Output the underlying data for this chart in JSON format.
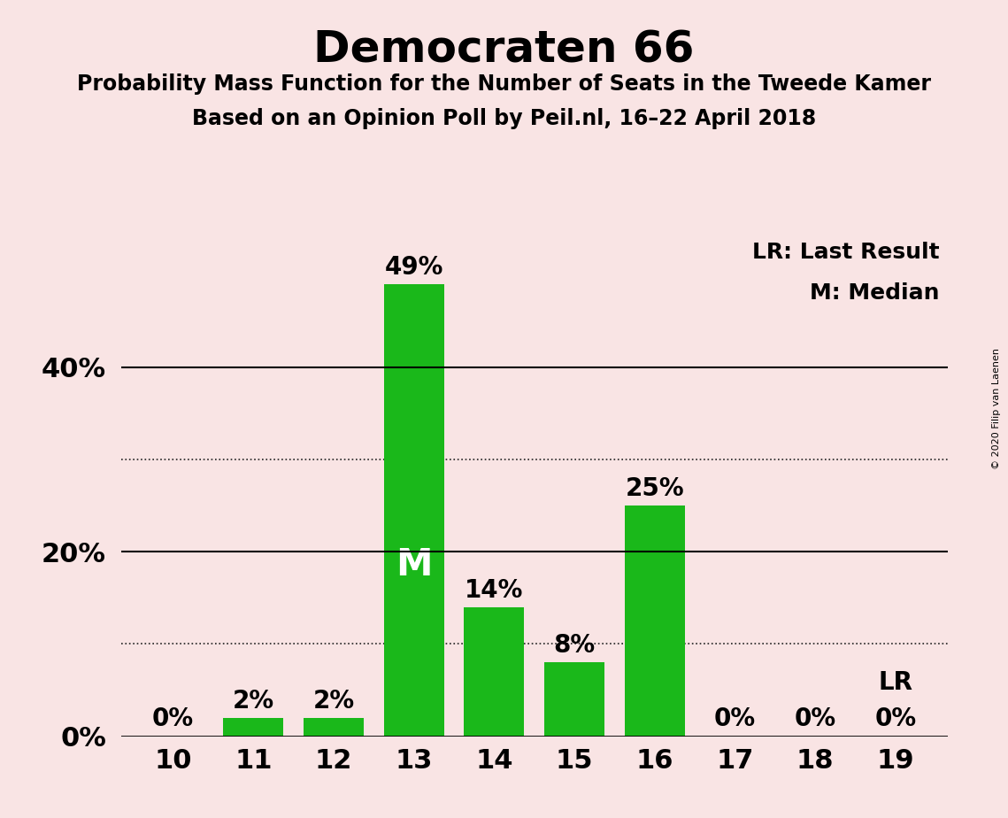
{
  "title": "Democraten 66",
  "subtitle1": "Probability Mass Function for the Number of Seats in the Tweede Kamer",
  "subtitle2": "Based on an Opinion Poll by Peil.nl, 16–22 April 2018",
  "seats": [
    10,
    11,
    12,
    13,
    14,
    15,
    16,
    17,
    18,
    19
  ],
  "probabilities": [
    0,
    2,
    2,
    49,
    14,
    8,
    25,
    0,
    0,
    0
  ],
  "bar_color": "#1ab81a",
  "median_seat": 13,
  "lr_seat": 19,
  "median_label": "M",
  "lr_label": "LR",
  "legend_lr": "LR: Last Result",
  "legend_m": "M: Median",
  "background_color": "#f9e4e4",
  "solid_gridlines": [
    0,
    20,
    40
  ],
  "dotted_gridlines": [
    10,
    30
  ],
  "ylim": [
    0,
    55
  ],
  "copyright": "© 2020 Filip van Laenen",
  "bar_width": 0.75,
  "title_fontsize": 36,
  "subtitle_fontsize": 17,
  "tick_fontsize": 22,
  "label_fontsize": 20,
  "legend_fontsize": 18,
  "M_fontsize": 30
}
